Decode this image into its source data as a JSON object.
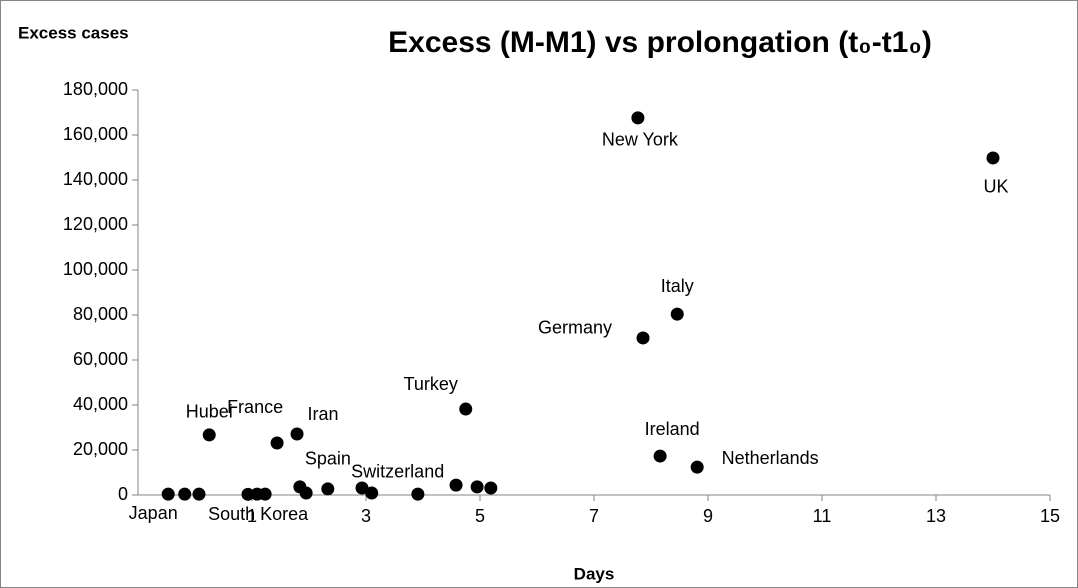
{
  "chart_data": {
    "type": "scatter",
    "title": "Excess (M-M1) vs prolongation (t₀-t1₀)",
    "y_label": "Excess cases",
    "x_label": "Days",
    "xlim": [
      -1,
      15
    ],
    "xticks": [
      1,
      3,
      5,
      7,
      9,
      11,
      13,
      15
    ],
    "ylim": [
      0,
      180000
    ],
    "yticks": [
      0,
      {
        "value": 20000,
        "label": "20,000"
      },
      {
        "value": 40000,
        "label": "40,000"
      },
      {
        "value": 60000,
        "label": "60,000"
      },
      {
        "value": 80000,
        "label": "80,000"
      },
      {
        "value": 100000,
        "label": "100,000"
      },
      {
        "value": 120000,
        "label": "120,000"
      },
      {
        "value": 140000,
        "label": "140,000"
      },
      {
        "value": 160000,
        "label": "160,000"
      },
      {
        "value": 180000,
        "label": "180,000"
      }
    ],
    "grid": false,
    "series": [
      {
        "color": "#000000",
        "x": [
          -0.47,
          -0.18,
          0.07,
          0.25,
          0.93,
          1.09,
          1.23,
          1.44,
          1.79,
          1.84,
          1.95,
          2.33,
          2.93,
          3.1,
          3.91,
          4.75,
          4.58,
          4.95,
          5.19,
          7.86,
          8.46,
          7.77,
          14.0,
          8.16,
          8.81
        ],
        "values": [
          400,
          400,
          400,
          26700,
          300,
          400,
          400,
          23100,
          27100,
          3600,
          900,
          2700,
          3100,
          900,
          400,
          38200,
          4400,
          3600,
          3100,
          69800,
          80400,
          167600,
          149800,
          17300,
          12400
        ],
        "labels": [
          "Japan",
          null,
          null,
          "Hubei",
          null,
          "South Korea",
          null,
          "France",
          "Iran",
          "Spain",
          null,
          null,
          null,
          "Switzerland",
          null,
          "Turkey",
          null,
          null,
          null,
          "Germany",
          "Italy",
          "New York",
          "UK",
          "Ireland",
          "Netherlands"
        ]
      }
    ]
  }
}
